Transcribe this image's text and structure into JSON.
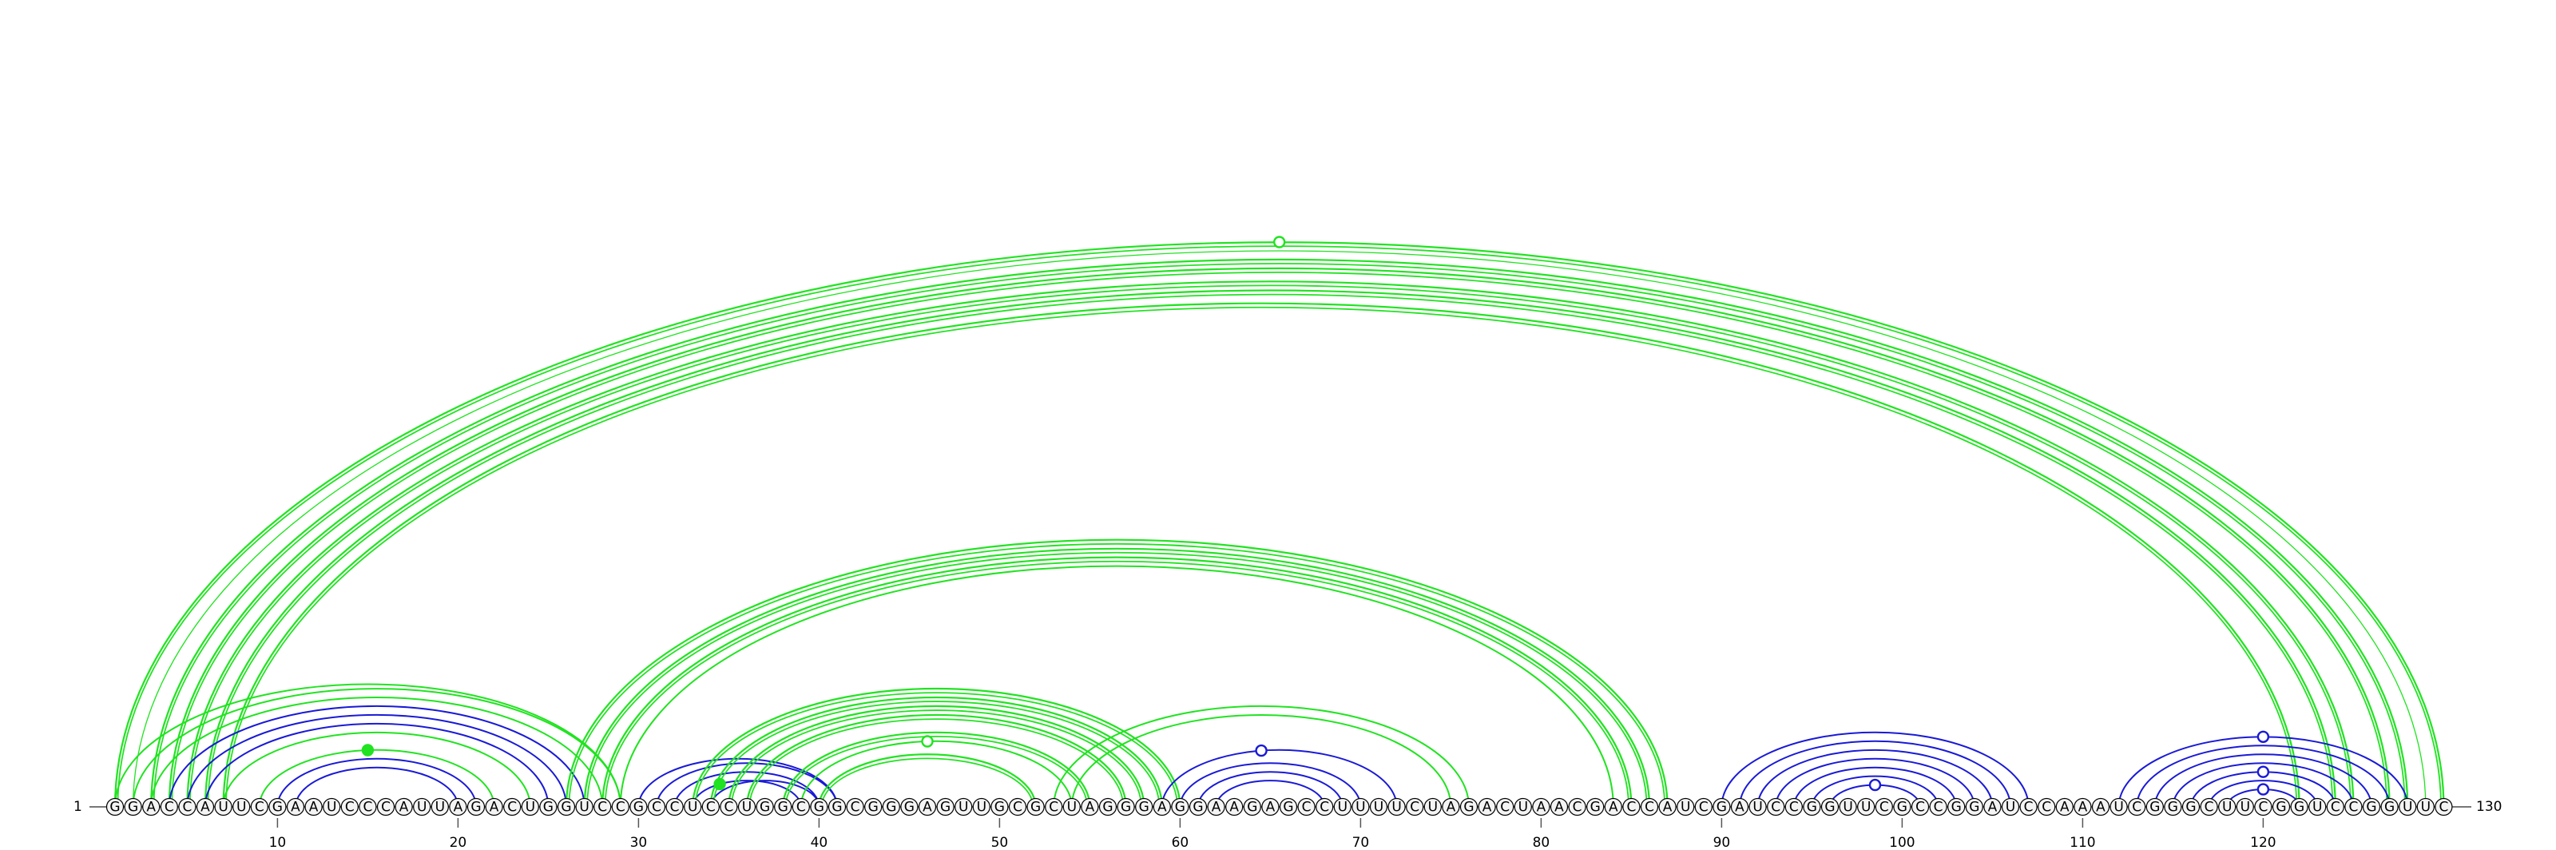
{
  "diagram": {
    "sequence": "GGACCAUUCGAAUCCCAUUAGACUGGUCCGCCUCCUGGCGGCGGGAGUUGCGCUAGGGAGGAAGAGCCUUUUCUAGACUAACGACCAUCGAUCCGGUUCGCCGGAUCCAAAUCGGGCUUCGGUCCGGUUC",
    "start_label": "1",
    "end_label": "130",
    "ticks": [
      "10",
      "20",
      "30",
      "40",
      "50",
      "60",
      "70",
      "80",
      "90",
      "100",
      "110",
      "120"
    ],
    "colors": {
      "pair_green": "#21e321",
      "pair_blue": "#1a1ad6",
      "baseline": "#777777",
      "nucleotide_fill": "#f4f4f4"
    },
    "arcs": [
      {
        "i": 1,
        "j": 130,
        "c": "green",
        "w": 2.2,
        "double": true
      },
      {
        "i": 2,
        "j": 129,
        "c": "green",
        "w": 1.3
      },
      {
        "i": 3,
        "j": 128,
        "c": "green",
        "w": 2.2,
        "double": true
      },
      {
        "i": 4,
        "j": 127,
        "c": "green",
        "w": 2.2,
        "double": true
      },
      {
        "i": 5,
        "j": 125,
        "c": "green",
        "w": 2.2,
        "double": true
      },
      {
        "i": 6,
        "j": 124,
        "c": "green",
        "w": 2.2,
        "double": true
      },
      {
        "i": 7,
        "j": 122,
        "c": "green",
        "w": 2.2,
        "double": true
      },
      {
        "i": 1,
        "j": 29,
        "c": "green",
        "w": 2.0
      },
      {
        "i": 2,
        "j": 29,
        "c": "green",
        "w": 2.0
      },
      {
        "i": 3,
        "j": 28,
        "c": "green",
        "w": 2.0
      },
      {
        "i": 4,
        "j": 27,
        "c": "blue",
        "w": 2.0
      },
      {
        "i": 5,
        "j": 26,
        "c": "blue",
        "w": 2.0
      },
      {
        "i": 6,
        "j": 25,
        "c": "blue",
        "w": 2.0
      },
      {
        "i": 7,
        "j": 24,
        "c": "green",
        "w": 2.0
      },
      {
        "i": 9,
        "j": 22,
        "c": "green",
        "w": 2.0
      },
      {
        "i": 10,
        "j": 21,
        "c": "blue",
        "w": 2.0
      },
      {
        "i": 11,
        "j": 20,
        "c": "blue",
        "w": 2.0
      },
      {
        "i": 26,
        "j": 87,
        "c": "green",
        "w": 2.2,
        "double": true
      },
      {
        "i": 27,
        "j": 86,
        "c": "green",
        "w": 2.2,
        "double": true
      },
      {
        "i": 28,
        "j": 85,
        "c": "green",
        "w": 2.2,
        "double": true
      },
      {
        "i": 29,
        "j": 84,
        "c": "green",
        "w": 2.0
      },
      {
        "i": 30,
        "j": 41,
        "c": "blue",
        "w": 2.0
      },
      {
        "i": 31,
        "j": 41,
        "c": "blue",
        "w": 2.0
      },
      {
        "i": 32,
        "j": 40,
        "c": "blue",
        "w": 2.0
      },
      {
        "i": 33,
        "j": 39,
        "c": "blue",
        "w": 2.0
      },
      {
        "i": 34,
        "j": 40,
        "c": "blue",
        "w": 2.0
      },
      {
        "i": 33,
        "j": 60,
        "c": "green",
        "w": 2.2,
        "double": true
      },
      {
        "i": 34,
        "j": 59,
        "c": "green",
        "w": 2.2,
        "double": true
      },
      {
        "i": 35,
        "j": 58,
        "c": "green",
        "w": 2.2,
        "double": true
      },
      {
        "i": 36,
        "j": 57,
        "c": "green",
        "w": 2.2,
        "double": true
      },
      {
        "i": 38,
        "j": 55,
        "c": "green",
        "w": 2.2,
        "double": true
      },
      {
        "i": 39,
        "j": 54,
        "c": "green",
        "w": 2.0
      },
      {
        "i": 40,
        "j": 52,
        "c": "green",
        "w": 2.2,
        "double": true
      },
      {
        "i": 53,
        "j": 76,
        "c": "green",
        "w": 2.0
      },
      {
        "i": 54,
        "j": 75,
        "c": "green",
        "w": 2.0
      },
      {
        "i": 59,
        "j": 72,
        "c": "blue",
        "w": 2.0
      },
      {
        "i": 60,
        "j": 70,
        "c": "blue",
        "w": 2.0
      },
      {
        "i": 61,
        "j": 69,
        "c": "blue",
        "w": 2.0
      },
      {
        "i": 62,
        "j": 68,
        "c": "blue",
        "w": 2.0
      },
      {
        "i": 90,
        "j": 107,
        "c": "blue",
        "w": 2.0
      },
      {
        "i": 91,
        "j": 106,
        "c": "blue",
        "w": 2.0
      },
      {
        "i": 92,
        "j": 105,
        "c": "blue",
        "w": 2.0
      },
      {
        "i": 93,
        "j": 104,
        "c": "blue",
        "w": 2.0
      },
      {
        "i": 94,
        "j": 103,
        "c": "blue",
        "w": 2.0
      },
      {
        "i": 95,
        "j": 102,
        "c": "blue",
        "w": 2.0
      },
      {
        "i": 96,
        "j": 101,
        "c": "blue",
        "w": 2.0
      },
      {
        "i": 112,
        "j": 128,
        "c": "blue",
        "w": 2.0
      },
      {
        "i": 113,
        "j": 127,
        "c": "blue",
        "w": 2.0
      },
      {
        "i": 114,
        "j": 126,
        "c": "blue",
        "w": 2.0
      },
      {
        "i": 115,
        "j": 125,
        "c": "blue",
        "w": 2.0
      },
      {
        "i": 116,
        "j": 124,
        "c": "blue",
        "w": 2.0
      },
      {
        "i": 117,
        "j": 123,
        "c": "blue",
        "w": 2.0
      },
      {
        "i": 118,
        "j": 122,
        "c": "blue",
        "w": 2.0
      }
    ],
    "markers": [
      {
        "at": 65.5,
        "on": "1-130",
        "c": "green",
        "filled": false
      },
      {
        "at": 15,
        "on": "9-22",
        "c": "green",
        "filled": true
      },
      {
        "at": 46,
        "on": "39-54",
        "c": "green",
        "filled": false
      },
      {
        "at": 34.5,
        "on": "33-39",
        "c": "green",
        "filled": true
      },
      {
        "at": 64.5,
        "on": "59-72",
        "c": "blue",
        "filled": false
      },
      {
        "at": 98.5,
        "on": "96-101",
        "c": "blue",
        "filled": false
      },
      {
        "at": 120,
        "on": "112-128",
        "c": "blue",
        "filled": false
      },
      {
        "at": 120,
        "on": "116-124",
        "c": "blue",
        "filled": false
      },
      {
        "at": 120,
        "on": "118-122",
        "c": "blue",
        "filled": false
      }
    ]
  }
}
